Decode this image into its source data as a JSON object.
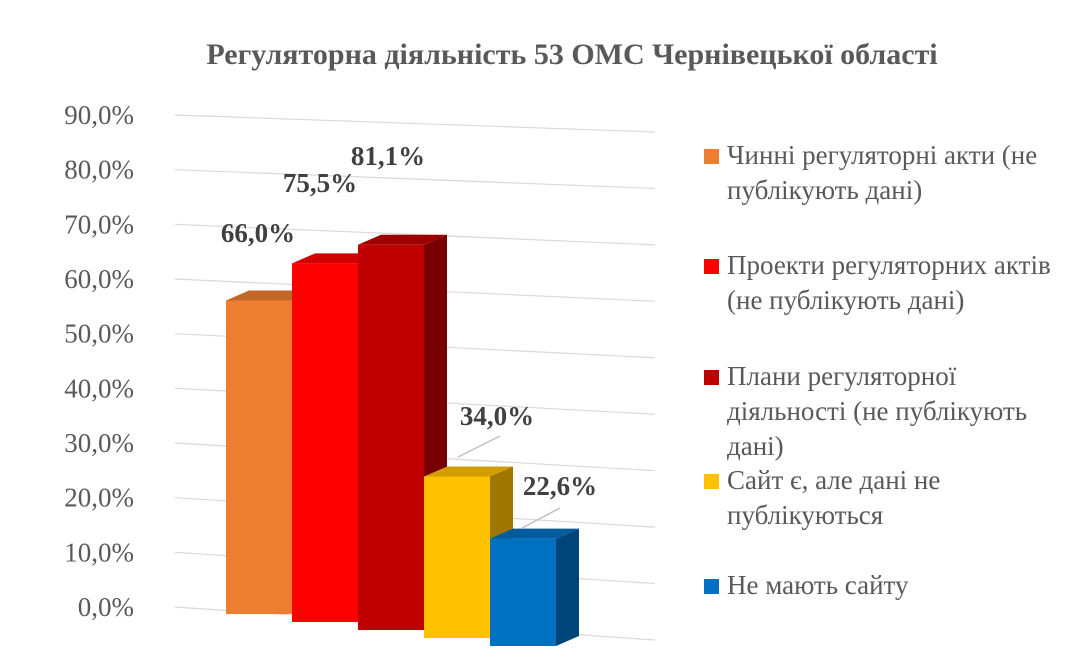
{
  "chart_data": {
    "type": "bar",
    "title": "Регуляторна діяльність 53 ОМС Чернівецької області",
    "categories": [
      "Чинні регуляторні акти (не публікують дані)",
      "Проекти регуляторних актів (не публікують дані)",
      "Плани регуляторної діяльності (не публікують дані)",
      "Сайт є, але дані не публікуються",
      "Не мають сайту"
    ],
    "values": [
      66.0,
      75.5,
      81.1,
      34.0,
      22.6
    ],
    "data_labels": [
      "66,0%",
      "75,5%",
      "81,1%",
      "34,0%",
      "22,6%"
    ],
    "colors": [
      "#ED7D31",
      "#FF0000",
      "#C00000",
      "#FFC000",
      "#0070C0"
    ],
    "ylim": [
      0,
      90
    ],
    "yticks": [
      "0,0%",
      "10,0%",
      "20,0%",
      "30,0%",
      "40,0%",
      "50,0%",
      "60,0%",
      "70,0%",
      "80,0%",
      "90,0%"
    ],
    "grid": true,
    "legend": "right"
  }
}
